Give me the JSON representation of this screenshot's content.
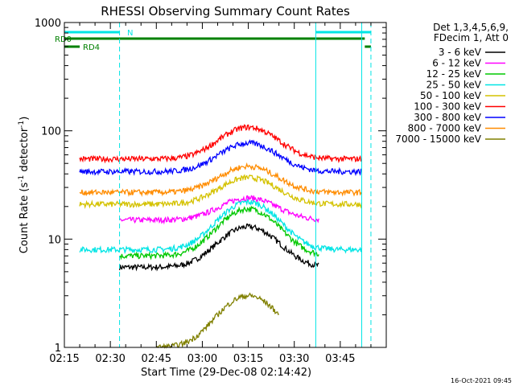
{
  "chart_data": {
    "type": "line",
    "title": "RHESSI Observing Summary Count Rates",
    "xlabel": "Start Time (29-Dec-08 02:14:42)",
    "ylabel_main": "Count Rate (s",
    "ylabel_sup": "-1",
    "ylabel_mid": " detector",
    "ylabel_sup2": "-1",
    "ylabel_end": ")",
    "x_ticks": [
      "02:15",
      "02:30",
      "02:45",
      "03:00",
      "03:15",
      "03:30",
      "03:45"
    ],
    "x_range_minutes": [
      0,
      105
    ],
    "y_ticks": [
      "1",
      "10",
      "100",
      "1000"
    ],
    "ylim": [
      1,
      1000
    ],
    "y_scale": "log",
    "legend_header": [
      "Det 1,3,4,5,6,9,",
      "FDecim 1, Att 0"
    ],
    "timestamp": "16-Oct-2021 09:45",
    "flags": [
      {
        "label": "N",
        "color": "#00e5e5",
        "segments": [
          [
            0,
            18
          ],
          [
            82,
            100
          ]
        ]
      },
      {
        "label": "RD0",
        "color": "#008000",
        "segments": [
          [
            0,
            98
          ]
        ]
      },
      {
        "label": "RD4",
        "color": "#008000",
        "segments": [
          [
            0,
            5
          ],
          [
            98,
            100
          ]
        ]
      }
    ],
    "dashed_lines": [
      18,
      100
    ],
    "solid_lines": [
      82,
      97
    ],
    "series": [
      {
        "name": "3 - 6 keV",
        "color": "#000000",
        "base": 5.5,
        "peak": 13,
        "start": 18,
        "end": 83
      },
      {
        "name": "6 - 12 keV",
        "color": "#ff00ff",
        "base": 15,
        "peak": 24,
        "start": 18,
        "end": 83
      },
      {
        "name": "12 - 25 keV",
        "color": "#00c800",
        "base": 7,
        "peak": 19,
        "start": 18,
        "end": 83
      },
      {
        "name": "25 - 50 keV",
        "color": "#00e5e5",
        "base": 8,
        "peak": 22,
        "start": 5,
        "end": 97
      },
      {
        "name": "50 - 100 keV",
        "color": "#d4c200",
        "base": 21,
        "peak": 37,
        "start": 5,
        "end": 97
      },
      {
        "name": "100 - 300 keV",
        "color": "#ff0000",
        "base": 55,
        "peak": 108,
        "start": 5,
        "end": 97
      },
      {
        "name": "300 - 800 keV",
        "color": "#0000ff",
        "base": 42,
        "peak": 77,
        "start": 5,
        "end": 97
      },
      {
        "name": "800 - 7000 keV",
        "color": "#ff8c00",
        "base": 27,
        "peak": 47,
        "start": 5,
        "end": 97
      },
      {
        "name": "7000 - 15000 keV",
        "color": "#808000",
        "base": 1.0,
        "peak": 3,
        "start": 30,
        "end": 70
      }
    ]
  }
}
